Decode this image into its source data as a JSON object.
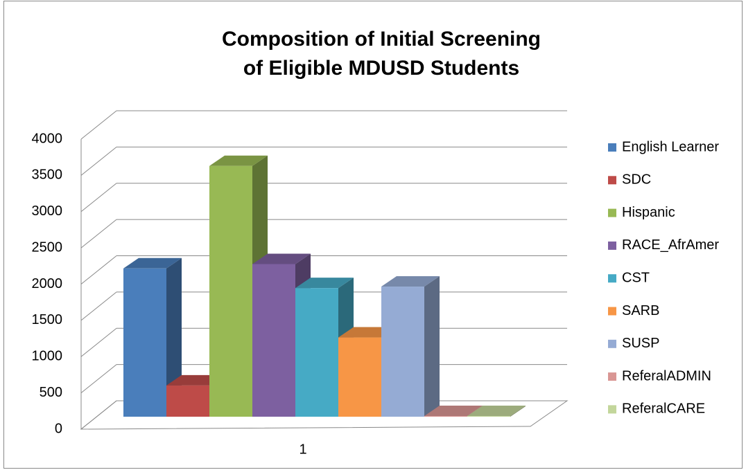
{
  "chart_data": {
    "type": "bar",
    "title": [
      "Composition of Initial Screening",
      "of Eligible MDUSD Students"
    ],
    "categories": [
      "1"
    ],
    "series": [
      {
        "name": "English Learner",
        "color": "#4a7ebb",
        "values": [
          2040
        ]
      },
      {
        "name": "SDC",
        "color": "#be4b48",
        "values": [
          430
        ]
      },
      {
        "name": "Hispanic",
        "color": "#98b954",
        "values": [
          3450
        ]
      },
      {
        "name": "RACE_AfrAmer",
        "color": "#7d60a0",
        "values": [
          2100
        ]
      },
      {
        "name": "CST",
        "color": "#46aac5",
        "values": [
          1770
        ]
      },
      {
        "name": "SARB",
        "color": "#f79646",
        "values": [
          1090
        ]
      },
      {
        "name": "SUSP",
        "color": "#95abd4",
        "values": [
          1790
        ]
      },
      {
        "name": "ReferalADMIN",
        "color": "#d99694",
        "values": [
          10
        ]
      },
      {
        "name": "ReferalCARE",
        "color": "#c3d69b",
        "values": [
          10
        ]
      }
    ],
    "ylim": [
      0,
      4000
    ],
    "yticks": [
      0,
      500,
      1000,
      1500,
      2000,
      2500,
      3000,
      3500,
      4000
    ],
    "grid": true,
    "legend": "right"
  }
}
